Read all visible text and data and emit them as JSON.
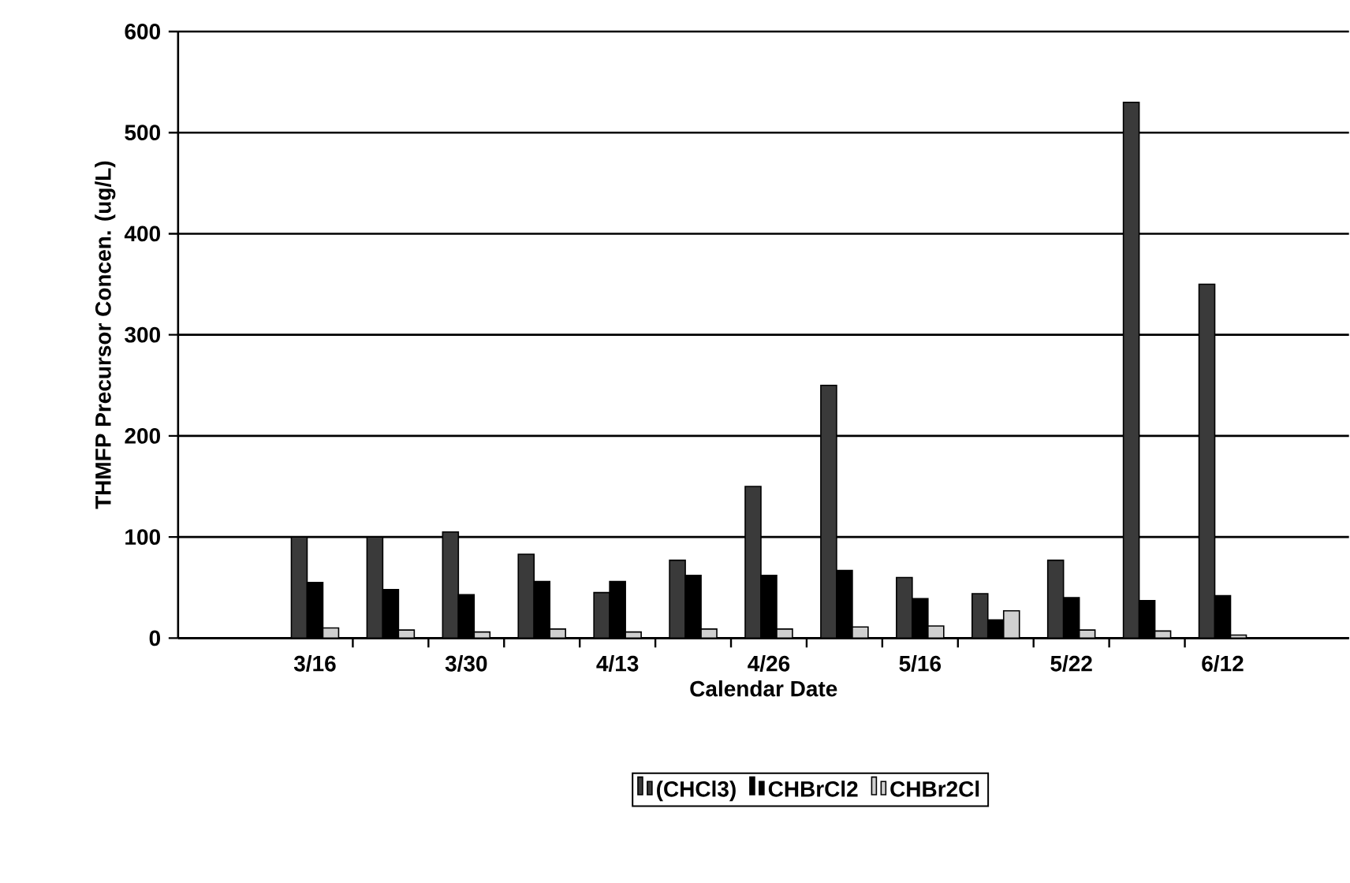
{
  "chart_data": {
    "type": "bar",
    "xlabel": "Calendar Date",
    "ylabel": "THMFP Precursor Concen. (ug/L)",
    "categories": [
      "3/16",
      null,
      "3/30",
      null,
      "4/13",
      null,
      "4/26",
      null,
      "5/16",
      null,
      "5/22",
      null,
      "6/12"
    ],
    "series": [
      {
        "name": "(CHCl3)",
        "color": "#3a3a3a",
        "values": [
          100,
          100,
          105,
          83,
          45,
          77,
          150,
          250,
          60,
          44,
          77,
          530,
          350
        ]
      },
      {
        "name": "CHBrCl2",
        "color": "#000000",
        "values": [
          55,
          48,
          43,
          56,
          56,
          62,
          62,
          67,
          39,
          18,
          40,
          37,
          42
        ]
      },
      {
        "name": "CHBr2Cl",
        "color": "#d0d0d0",
        "values": [
          10,
          8,
          6,
          9,
          6,
          9,
          9,
          11,
          12,
          27,
          8,
          7,
          3
        ]
      }
    ],
    "ylim": [
      0,
      600
    ],
    "yticks": [
      0,
      100,
      200,
      300,
      400,
      500,
      600
    ],
    "grid": "y",
    "legend": "bottom"
  }
}
